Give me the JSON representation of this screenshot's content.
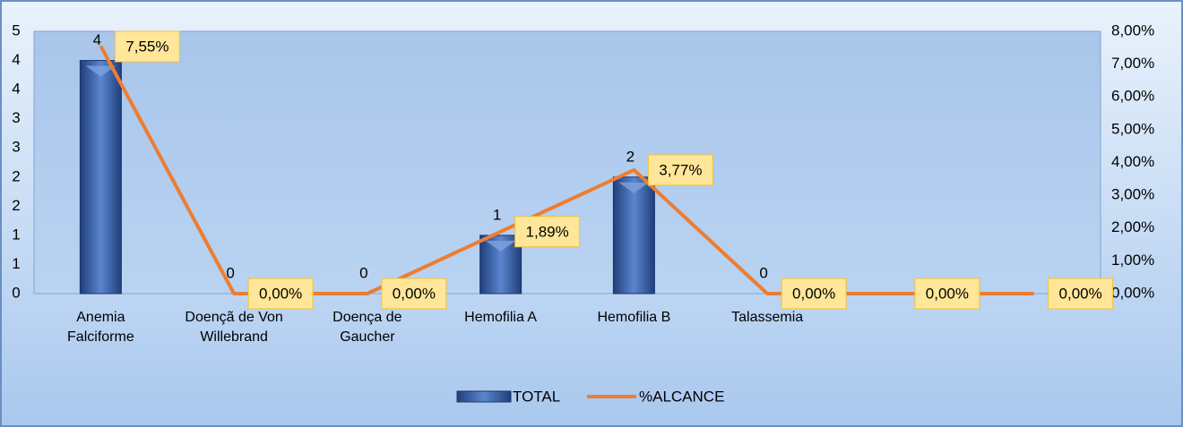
{
  "chart_data": {
    "type": "bar+line",
    "categories": [
      "Anemia Falciforme",
      "Doençã de Von Willebrand",
      "Doença de Gaucher",
      "Hemofilia A",
      "Hemofilia B",
      "Talassemia",
      null,
      null
    ],
    "series": [
      {
        "name": "TOTAL",
        "type": "bar",
        "color": "#4472c4",
        "values": [
          4,
          0,
          0,
          1,
          2,
          0,
          null,
          null
        ]
      },
      {
        "name": "%ALCANCE",
        "type": "line",
        "axis": "y2",
        "color": "#ed7d31",
        "values": [
          7.55,
          0,
          0,
          1.89,
          3.77,
          0,
          0,
          0
        ],
        "value_labels": [
          "7,55%",
          "0,00%",
          "0,00%",
          "1,89%",
          "3,77%",
          "0,00%",
          "0,00%",
          "0,00%"
        ]
      }
    ],
    "ylim": [
      0,
      4.5
    ],
    "yticks": [
      0,
      {
        "value": 0.5,
        "label": "1"
      },
      1,
      {
        "value": 1.5,
        "label": "2"
      },
      2,
      {
        "value": 2.5,
        "label": "3"
      },
      3,
      {
        "value": 3.5,
        "label": "4"
      },
      4,
      {
        "value": 4.5,
        "label": "5"
      }
    ],
    "y2lim": [
      0,
      8
    ],
    "y2ticks": [
      {
        "value": 0,
        "label": "0,00%"
      },
      {
        "value": 1,
        "label": "1,00%"
      },
      {
        "value": 2,
        "label": "2,00%"
      },
      {
        "value": 3,
        "label": "3,00%"
      },
      {
        "value": 4,
        "label": "4,00%"
      },
      {
        "value": 5,
        "label": "5,00%"
      },
      {
        "value": 6,
        "label": "6,00%"
      },
      {
        "value": 7,
        "label": "7,00%"
      },
      {
        "value": 8,
        "label": "8,00%"
      }
    ],
    "legend": "bottom",
    "grid": false
  }
}
